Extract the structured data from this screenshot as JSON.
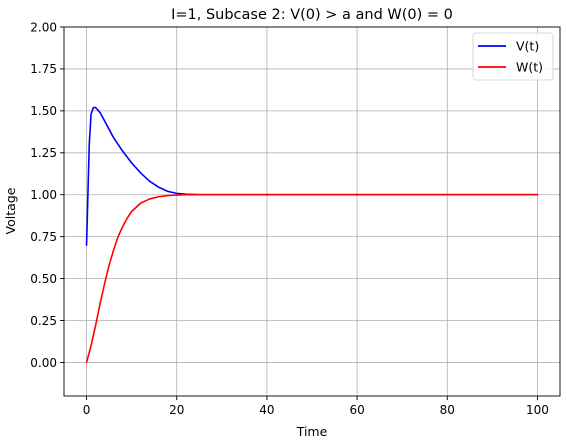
{
  "chart_data": {
    "type": "line",
    "title": "I=1, Subcase 2: V(0) > a and W(0) = 0",
    "xlabel": "Time",
    "ylabel": "Voltage",
    "xlim": [
      -5,
      105
    ],
    "ylim": [
      -0.2,
      2.0
    ],
    "xticks": [
      0,
      20,
      40,
      60,
      80,
      100
    ],
    "yticks": [
      0.0,
      0.25,
      0.5,
      0.75,
      1.0,
      1.25,
      1.5,
      1.75,
      2.0
    ],
    "xtick_labels": [
      "0",
      "20",
      "40",
      "60",
      "80",
      "100"
    ],
    "ytick_labels": [
      "0.00",
      "0.25",
      "0.50",
      "0.75",
      "1.00",
      "1.25",
      "1.50",
      "1.75",
      "2.00"
    ],
    "grid": true,
    "legend_position": "top-right",
    "series": [
      {
        "name": "V(t)",
        "color": "#0000ff",
        "x": [
          0,
          0.3,
          0.6,
          1.0,
          1.5,
          2,
          3,
          4,
          5,
          6,
          7,
          8,
          10,
          12,
          14,
          16,
          18,
          20,
          22,
          25,
          30,
          40,
          60,
          80,
          100
        ],
        "y": [
          0.7,
          1.0,
          1.3,
          1.48,
          1.52,
          1.52,
          1.49,
          1.44,
          1.39,
          1.34,
          1.3,
          1.26,
          1.19,
          1.13,
          1.08,
          1.045,
          1.02,
          1.008,
          1.003,
          1.0,
          1.0,
          1.0,
          1.0,
          1.0,
          1.0
        ]
      },
      {
        "name": "W(t)",
        "color": "#ff0000",
        "x": [
          0,
          1,
          2,
          3,
          4,
          5,
          6,
          7,
          8,
          9,
          10,
          12,
          14,
          16,
          18,
          20,
          22,
          25,
          30,
          40,
          60,
          80,
          100
        ],
        "y": [
          0.0,
          0.1,
          0.22,
          0.35,
          0.47,
          0.58,
          0.67,
          0.75,
          0.81,
          0.86,
          0.9,
          0.95,
          0.975,
          0.988,
          0.995,
          0.998,
          1.0,
          1.0,
          1.0,
          1.0,
          1.0,
          1.0,
          1.0
        ]
      }
    ]
  }
}
